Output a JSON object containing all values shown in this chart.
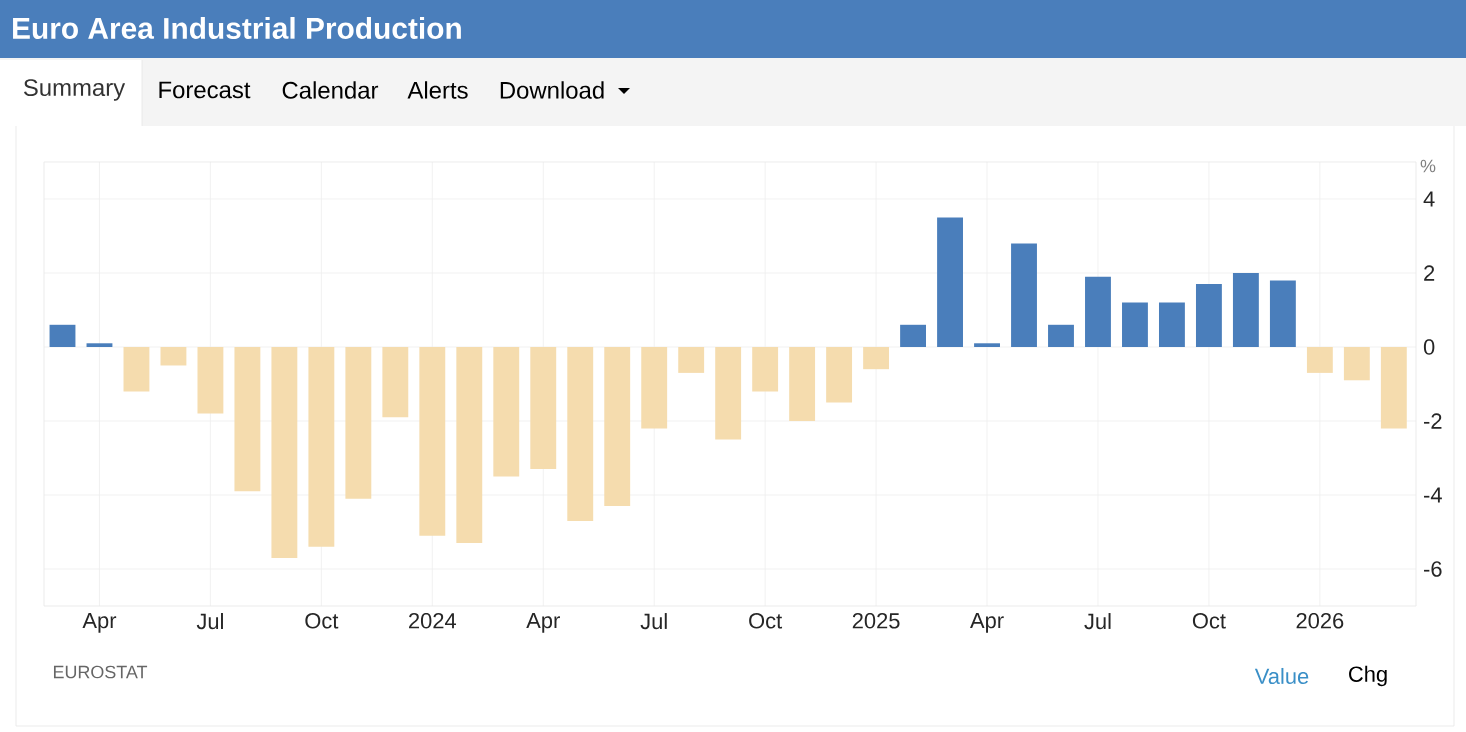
{
  "chart_data": {
    "type": "bar",
    "title": "Euro Area Industrial Production",
    "ylabel": "%",
    "categories": [
      null,
      "Apr",
      null,
      null,
      "Jul",
      null,
      null,
      "Oct",
      null,
      null,
      "2024",
      null,
      null,
      "Apr",
      null,
      null,
      "Jul",
      null,
      null,
      "Oct",
      null,
      null,
      "2025",
      null,
      null,
      "Apr",
      null,
      null,
      "Jul",
      null,
      null,
      "Oct",
      null,
      null,
      "2026",
      null,
      null
    ],
    "values": [
      0.6,
      0.1,
      -1.2,
      -0.5,
      -1.8,
      -3.9,
      -5.7,
      -5.4,
      -4.1,
      -1.9,
      -5.1,
      -5.3,
      -3.5,
      -3.3,
      -4.7,
      -4.3,
      -2.2,
      -0.7,
      -2.5,
      -1.2,
      -2.0,
      -1.5,
      -0.6,
      0.6,
      3.5,
      0.1,
      2.8,
      0.6,
      1.9,
      1.2,
      1.2,
      1.7,
      2.0,
      1.8,
      -0.7,
      -0.9,
      -2.2
    ],
    "colors": [
      "#4a7ebb",
      "#4a7ebb",
      "#f5dcae",
      "#f5dcae",
      "#f5dcae",
      "#f5dcae",
      "#f5dcae",
      "#f5dcae",
      "#f5dcae",
      "#f5dcae",
      "#f5dcae",
      "#f5dcae",
      "#f5dcae",
      "#f5dcae",
      "#f5dcae",
      "#f5dcae",
      "#f5dcae",
      "#f5dcae",
      "#f5dcae",
      "#f5dcae",
      "#f5dcae",
      "#f5dcae",
      "#f5dcae",
      "#4a7ebb",
      "#4a7ebb",
      "#4a7ebb",
      "#4a7ebb",
      "#4a7ebb",
      "#4a7ebb",
      "#4a7ebb",
      "#4a7ebb",
      "#4a7ebb",
      "#4a7ebb",
      "#4a7ebb",
      "#f5dcae",
      "#f5dcae",
      "#f5dcae"
    ],
    "ylim": [
      -7,
      5
    ],
    "yticks": [
      -6,
      -4,
      -2,
      0,
      2,
      4
    ],
    "grid": true,
    "annotations": [
      "Summary",
      "Forecast",
      "Calendar",
      "Alerts",
      "Download",
      "EUROSTAT",
      "Value",
      "Chg"
    ]
  }
}
